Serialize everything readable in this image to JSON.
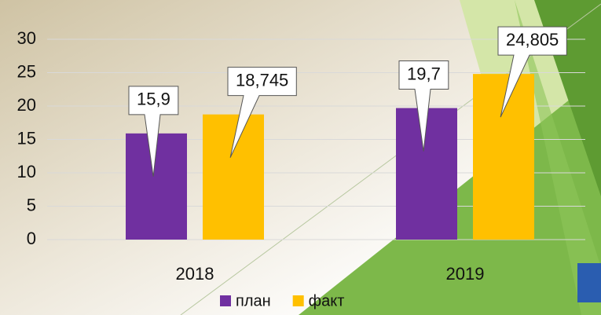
{
  "chart_data": {
    "type": "bar",
    "categories": [
      "2018",
      "2019"
    ],
    "series": [
      {
        "name": "план",
        "color": "#7030a0",
        "values": [
          15.9,
          19.7
        ],
        "value_labels": [
          "15,9",
          "19,7"
        ]
      },
      {
        "name": "факт",
        "color": "#ffc000",
        "values": [
          18.745,
          24.805
        ],
        "value_labels": [
          "18,745",
          "24,805"
        ]
      }
    ],
    "ylim": [
      0,
      30
    ],
    "yticks": [
      0,
      5,
      10,
      15,
      20,
      25,
      30
    ],
    "grid": true,
    "legend": "bottom"
  }
}
